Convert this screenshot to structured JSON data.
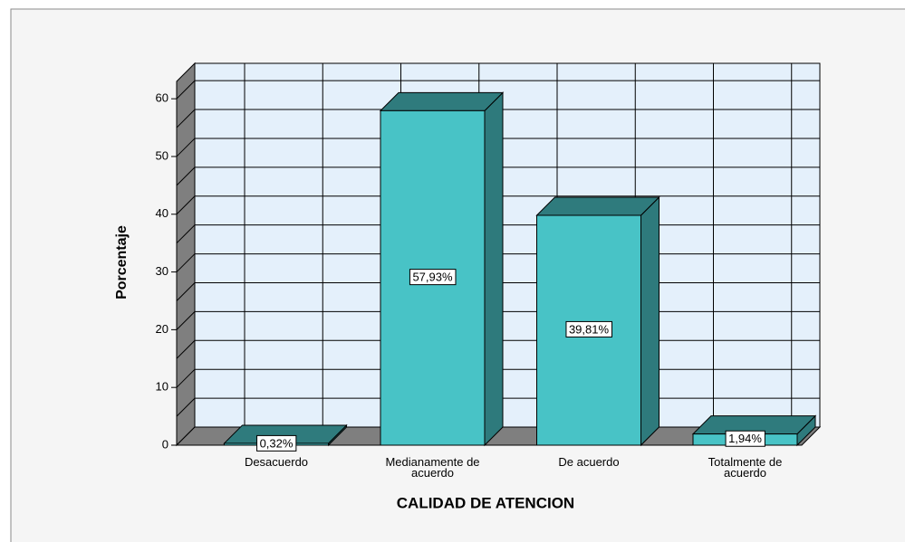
{
  "chart_data": {
    "type": "bar3d",
    "x_label": "CALIDAD DE ATENCION",
    "y_label": "Porcentaje",
    "categories": [
      "Desacuerdo",
      "Medianamente de acuerdo",
      "De acuerdo",
      "Totalmente de acuerdo"
    ],
    "values": [
      0.32,
      57.93,
      39.81,
      1.94
    ],
    "value_labels": [
      "0,32%",
      "57,93%",
      "39,81%",
      "1,94%"
    ],
    "color": "#48c3c6",
    "ylim": [
      0,
      63
    ],
    "yticks": [
      0,
      10,
      20,
      30,
      40,
      50,
      60
    ],
    "minor_yticks": [
      5,
      15,
      25,
      35,
      45,
      55
    ],
    "grid": true
  }
}
